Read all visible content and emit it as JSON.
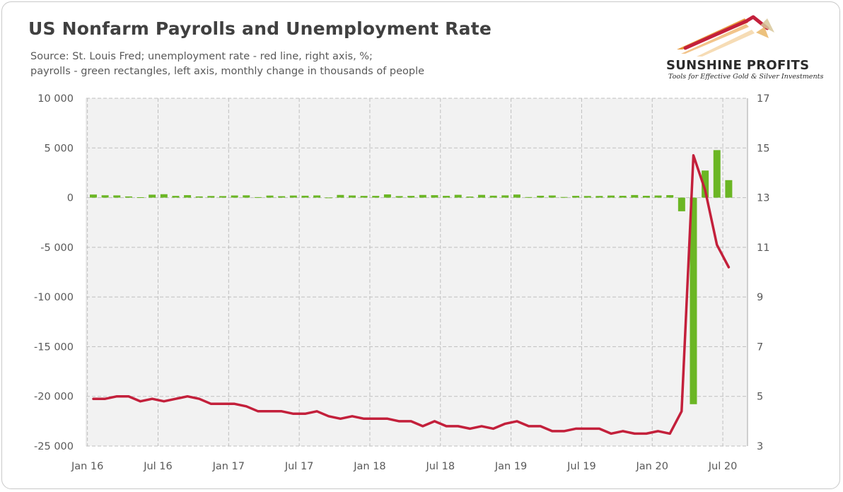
{
  "title": "US Nonfarm Payrolls and Unemployment Rate",
  "subtitle_lines": [
    "Source: St. Louis Fred; unemployment rate - red line, right axis, %;",
    "payrolls - green rectangles, left axis, monthly change in thousands of people"
  ],
  "logo": {
    "name": "SUNSHINE PROFITS",
    "tagline": "Tools for Effective Gold & Silver Investments",
    "icon": "rising-arrow-logo-icon"
  },
  "colors": {
    "payrolls": "#6bb624",
    "unemployment": "#c3203b",
    "plot_background": "#f2f2f2",
    "grid": "#bfbfbf"
  },
  "chart_data": {
    "type": "bar",
    "grid": true,
    "x_tick_labels": [
      "Jan 16",
      "Jul 16",
      "Jan 17",
      "Jul 17",
      "Jan 18",
      "Jul 18",
      "Jan 19",
      "Jul 19",
      "Jan 20",
      "Jul 20"
    ],
    "x_tick_months": [
      1,
      7,
      13,
      19,
      25,
      31,
      37,
      43,
      49,
      55
    ],
    "months": [
      1,
      2,
      3,
      4,
      5,
      6,
      7,
      8,
      9,
      10,
      11,
      12,
      13,
      14,
      15,
      16,
      17,
      18,
      19,
      20,
      21,
      22,
      23,
      24,
      25,
      26,
      27,
      28,
      29,
      30,
      31,
      32,
      33,
      34,
      35,
      36,
      37,
      38,
      39,
      40,
      41,
      42,
      43,
      44,
      45,
      46,
      47,
      48,
      49,
      50,
      51,
      52,
      53,
      54,
      55
    ],
    "y_left": {
      "ticks": [
        10000,
        5000,
        0,
        -5000,
        -10000,
        -15000,
        -20000,
        -25000
      ],
      "tick_labels": [
        "10 000",
        "5 000",
        "0",
        "-5 000",
        "-10 000",
        "-15 000",
        "-20 000",
        "-25 000"
      ],
      "range": [
        -25000,
        10000
      ]
    },
    "y_right": {
      "ticks": [
        17,
        15,
        13,
        11,
        9,
        7,
        5,
        3
      ],
      "tick_labels": [
        "17",
        "15",
        "13",
        "11",
        "9",
        "7",
        "5",
        "3"
      ],
      "range": [
        3,
        17
      ]
    },
    "series": [
      {
        "type": "bar",
        "axis": "left",
        "values": [
          310,
          237,
          225,
          123,
          43,
          297,
          344,
          176,
          249,
          124,
          164,
          155,
          216,
          232,
          50,
          207,
          145,
          210,
          190,
          221,
          14,
          271,
          216,
          175,
          176,
          324,
          155,
          175,
          270,
          248,
          178,
          282,
          108,
          277,
          196,
          227,
          312,
          56,
          189,
          216,
          62,
          178,
          164,
          168,
          208,
          185,
          261,
          184,
          214,
          251,
          -1373,
          -20787,
          2725,
          4781,
          1761
        ]
      },
      {
        "type": "line",
        "axis": "right",
        "values": [
          4.9,
          4.9,
          5.0,
          5.0,
          4.8,
          4.9,
          4.8,
          4.9,
          5.0,
          4.9,
          4.7,
          4.7,
          4.7,
          4.6,
          4.4,
          4.4,
          4.4,
          4.3,
          4.3,
          4.4,
          4.2,
          4.1,
          4.2,
          4.1,
          4.1,
          4.1,
          4.0,
          4.0,
          3.8,
          4.0,
          3.8,
          3.8,
          3.7,
          3.8,
          3.7,
          3.9,
          4.0,
          3.8,
          3.8,
          3.6,
          3.6,
          3.7,
          3.7,
          3.7,
          3.5,
          3.6,
          3.5,
          3.5,
          3.6,
          3.5,
          4.4,
          14.7,
          13.3,
          11.1,
          10.2
        ]
      }
    ]
  }
}
